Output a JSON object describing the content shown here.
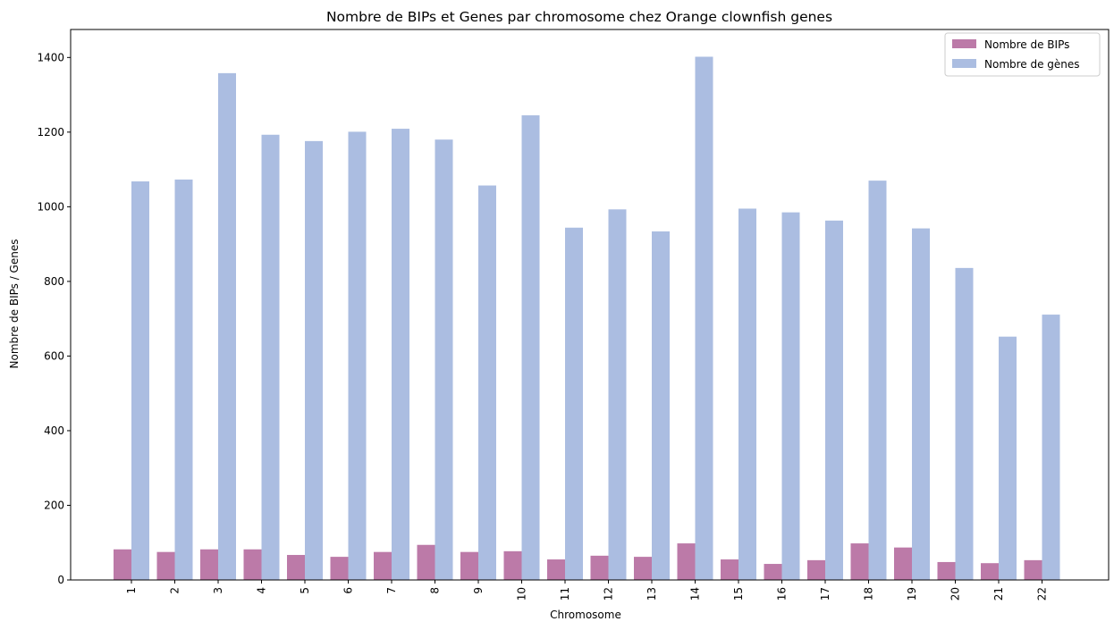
{
  "chart_data": {
    "type": "bar",
    "title": "Nombre de BIPs et Genes par chromosome chez Orange clownfish genes",
    "xlabel": "Chromosome",
    "ylabel": "Nombre de BIPs / Genes",
    "ylim": [
      0,
      1475
    ],
    "yticks": [
      0,
      200,
      400,
      600,
      800,
      1000,
      1200,
      1400
    ],
    "categories": [
      "1",
      "2",
      "3",
      "4",
      "5",
      "6",
      "7",
      "8",
      "9",
      "10",
      "11",
      "12",
      "13",
      "14",
      "15",
      "16",
      "17",
      "18",
      "19",
      "20",
      "21",
      "22"
    ],
    "series": [
      {
        "name": "Nombre de BIPs",
        "color": "#bc7aa8",
        "values": [
          82,
          75,
          82,
          82,
          67,
          62,
          75,
          94,
          75,
          77,
          55,
          65,
          62,
          98,
          55,
          43,
          53,
          98,
          87,
          48,
          45,
          53
        ]
      },
      {
        "name": "Nombre de gènes",
        "color": "#abbde1",
        "values": [
          1068,
          1073,
          1358,
          1193,
          1176,
          1201,
          1209,
          1180,
          1057,
          1245,
          944,
          993,
          934,
          1402,
          995,
          985,
          963,
          1070,
          942,
          836,
          652,
          711
        ]
      }
    ],
    "legend": "top-right",
    "grid": false
  }
}
